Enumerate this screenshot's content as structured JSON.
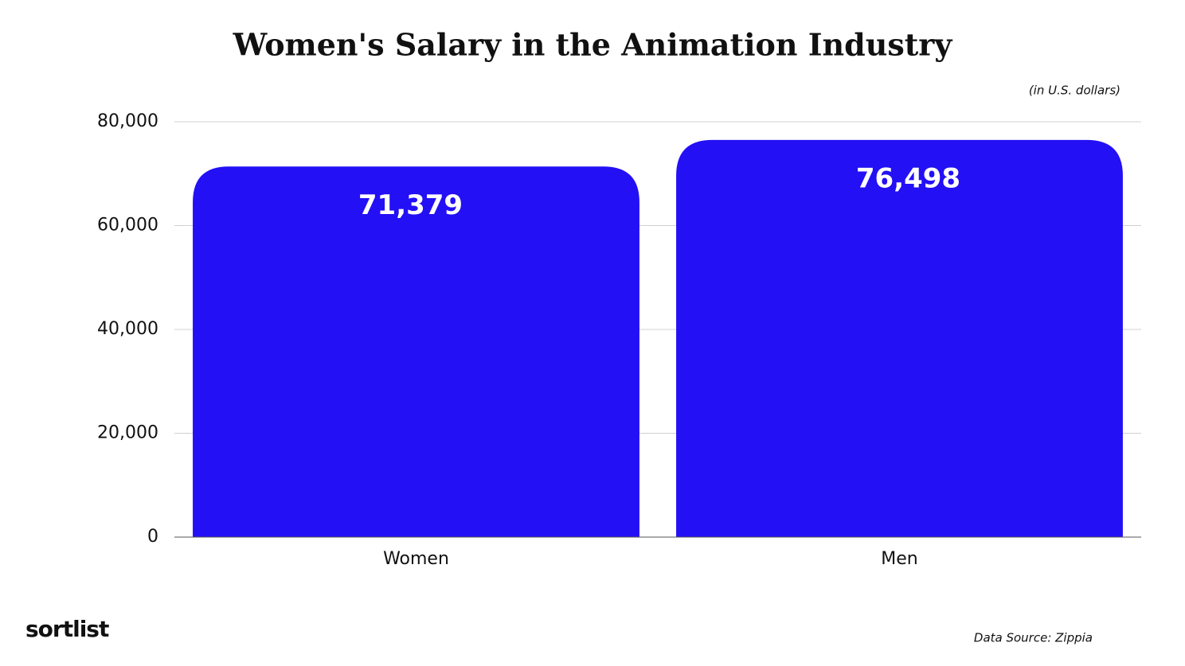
{
  "chart_data": {
    "type": "bar",
    "title": "Women's Salary in the Animation Industry",
    "subtitle": "(in U.S. dollars)",
    "categories": [
      "Women",
      "Men"
    ],
    "values": [
      71379,
      76498
    ],
    "value_labels": [
      "71,379",
      "76,498"
    ],
    "color": "#2310f5",
    "ylim": [
      0,
      80000
    ],
    "yticks": [
      {
        "value": 0,
        "label": "0"
      },
      {
        "value": 20000,
        "label": "20,000"
      },
      {
        "value": 40000,
        "label": "40,000"
      },
      {
        "value": 60000,
        "label": "60,000"
      },
      {
        "value": 80000,
        "label": "80,000"
      }
    ],
    "grid": true,
    "source": "Data Source: Zippia",
    "brand": "sortlist"
  }
}
